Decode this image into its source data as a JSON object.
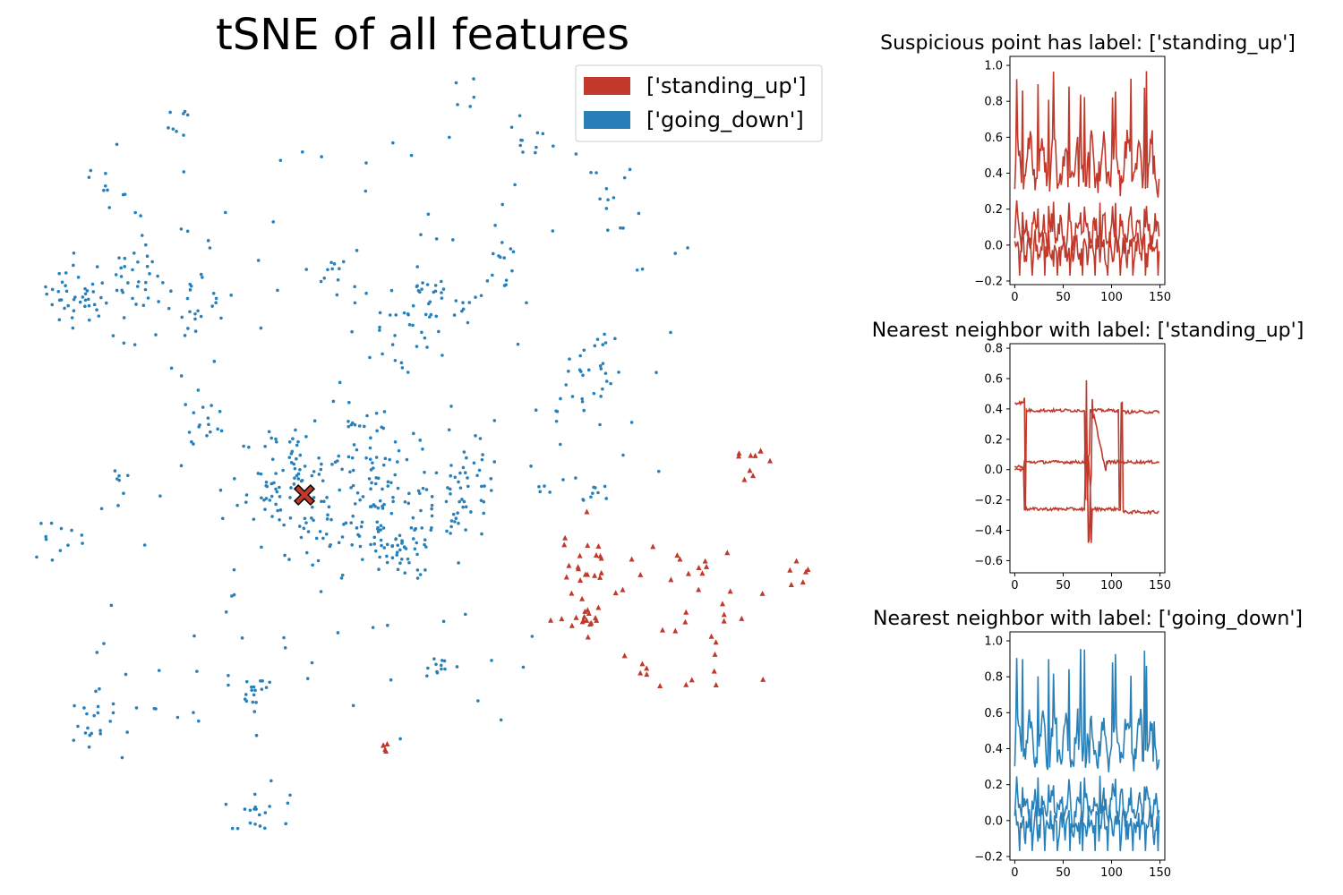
{
  "chart_data": [
    {
      "type": "scatter",
      "title": "tSNE of all features",
      "xlabel": "",
      "ylabel": "",
      "axes_visible": false,
      "legend": {
        "placement": "top-right",
        "entries": [
          {
            "label": "['standing_up']",
            "color": "#c0392b"
          },
          {
            "label": "['going_down']",
            "color": "#2980b9"
          }
        ]
      },
      "series": [
        {
          "name": "['going_down']",
          "marker": "dot",
          "color": "#2980b9",
          "clusters": [
            {
              "cx": 88,
              "cy": 330,
              "n": 40,
              "spread": 3
            },
            {
              "cx": 120,
              "cy": 200,
              "n": 8,
              "spread": 2
            },
            {
              "cx": 150,
              "cy": 310,
              "n": 30,
              "spread": 3
            },
            {
              "cx": 220,
              "cy": 340,
              "n": 20,
              "spread": 3
            },
            {
              "cx": 230,
              "cy": 470,
              "n": 15,
              "spread": 2
            },
            {
              "cx": 290,
              "cy": 560,
              "n": 25,
              "spread": 3
            },
            {
              "cx": 330,
              "cy": 520,
              "n": 40,
              "spread": 4
            },
            {
              "cx": 420,
              "cy": 540,
              "n": 70,
              "spread": 5
            },
            {
              "cx": 360,
              "cy": 590,
              "n": 40,
              "spread": 4
            },
            {
              "cx": 460,
              "cy": 590,
              "n": 40,
              "spread": 4
            },
            {
              "cx": 430,
              "cy": 610,
              "n": 30,
              "spread": 3
            },
            {
              "cx": 520,
              "cy": 570,
              "n": 20,
              "spread": 3
            },
            {
              "cx": 520,
              "cy": 520,
              "n": 20,
              "spread": 3
            },
            {
              "cx": 460,
              "cy": 360,
              "n": 30,
              "spread": 4
            },
            {
              "cx": 475,
              "cy": 310,
              "n": 12,
              "spread": 2
            },
            {
              "cx": 520,
              "cy": 345,
              "n": 10,
              "spread": 2
            },
            {
              "cx": 600,
              "cy": 160,
              "n": 12,
              "spread": 3
            },
            {
              "cx": 650,
              "cy": 440,
              "n": 18,
              "spread": 3
            },
            {
              "cx": 675,
              "cy": 400,
              "n": 12,
              "spread": 2
            },
            {
              "cx": 690,
              "cy": 230,
              "n": 12,
              "spread": 3
            },
            {
              "cx": 660,
              "cy": 550,
              "n": 10,
              "spread": 2
            },
            {
              "cx": 560,
              "cy": 300,
              "n": 12,
              "spread": 2
            },
            {
              "cx": 370,
              "cy": 300,
              "n": 10,
              "spread": 2
            },
            {
              "cx": 405,
              "cy": 470,
              "n": 15,
              "spread": 3
            },
            {
              "cx": 60,
              "cy": 605,
              "n": 10,
              "spread": 2
            },
            {
              "cx": 100,
              "cy": 810,
              "n": 20,
              "spread": 3
            },
            {
              "cx": 280,
              "cy": 765,
              "n": 15,
              "spread": 2
            },
            {
              "cx": 290,
              "cy": 905,
              "n": 20,
              "spread": 3
            },
            {
              "cx": 490,
              "cy": 745,
              "n": 10,
              "spread": 2
            },
            {
              "cx": 200,
              "cy": 135,
              "n": 8,
              "spread": 2
            },
            {
              "cx": 530,
              "cy": 104,
              "n": 5,
              "spread": 2
            },
            {
              "cx": 130,
              "cy": 535,
              "n": 5,
              "spread": 1
            },
            {
              "cx": 610,
              "cy": 540,
              "n": 6,
              "spread": 2
            }
          ]
        },
        {
          "name": "['standing_up']",
          "marker": "triangle",
          "color": "#c0392b",
          "clusters": [
            {
              "cx": 660,
              "cy": 640,
              "n": 25,
              "spread": 4
            },
            {
              "cx": 650,
              "cy": 690,
              "n": 15,
              "spread": 2
            },
            {
              "cx": 780,
              "cy": 660,
              "n": 20,
              "spread": 5
            },
            {
              "cx": 800,
              "cy": 740,
              "n": 12,
              "spread": 4
            },
            {
              "cx": 838,
              "cy": 520,
              "n": 10,
              "spread": 2
            },
            {
              "cx": 885,
              "cy": 640,
              "n": 6,
              "spread": 2
            },
            {
              "cx": 710,
              "cy": 740,
              "n": 5,
              "spread": 2
            },
            {
              "cx": 432,
              "cy": 833,
              "n": 5,
              "spread": 1
            }
          ]
        }
      ],
      "highlight": {
        "name": "suspicious point",
        "marker": "X",
        "color": "#c0392b",
        "edge": "#000000",
        "x": 340,
        "y": 553
      }
    },
    {
      "type": "line",
      "title": "Suspicious point has label: ['standing_up']",
      "color": "#c0392b",
      "xlim": [
        -5,
        155
      ],
      "ylim": [
        -0.22,
        1.05
      ],
      "xticks": [
        0,
        50,
        100,
        150
      ],
      "yticks": [
        -0.2,
        0.0,
        0.2,
        0.4,
        0.6,
        0.8,
        1.0
      ],
      "series_count": 3,
      "shape": "spiky_periodic",
      "n_points": 150
    },
    {
      "type": "line",
      "title": "Nearest neighbor with label: ['standing_up']",
      "color": "#c0392b",
      "xlim": [
        -5,
        155
      ],
      "ylim": [
        -0.68,
        0.83
      ],
      "xticks": [
        0,
        50,
        100,
        150
      ],
      "yticks": [
        -0.6,
        -0.4,
        -0.2,
        0.0,
        0.2,
        0.4,
        0.6,
        0.8
      ],
      "series_count": 3,
      "shape": "stepped",
      "n_points": 150
    },
    {
      "type": "line",
      "title": "Nearest neighbor with label: ['going_down']",
      "color": "#2980b9",
      "xlim": [
        -5,
        155
      ],
      "ylim": [
        -0.22,
        1.05
      ],
      "xticks": [
        0,
        50,
        100,
        150
      ],
      "yticks": [
        -0.2,
        0.0,
        0.2,
        0.4,
        0.6,
        0.8,
        1.0
      ],
      "series_count": 3,
      "shape": "spiky_periodic",
      "n_points": 150
    }
  ]
}
